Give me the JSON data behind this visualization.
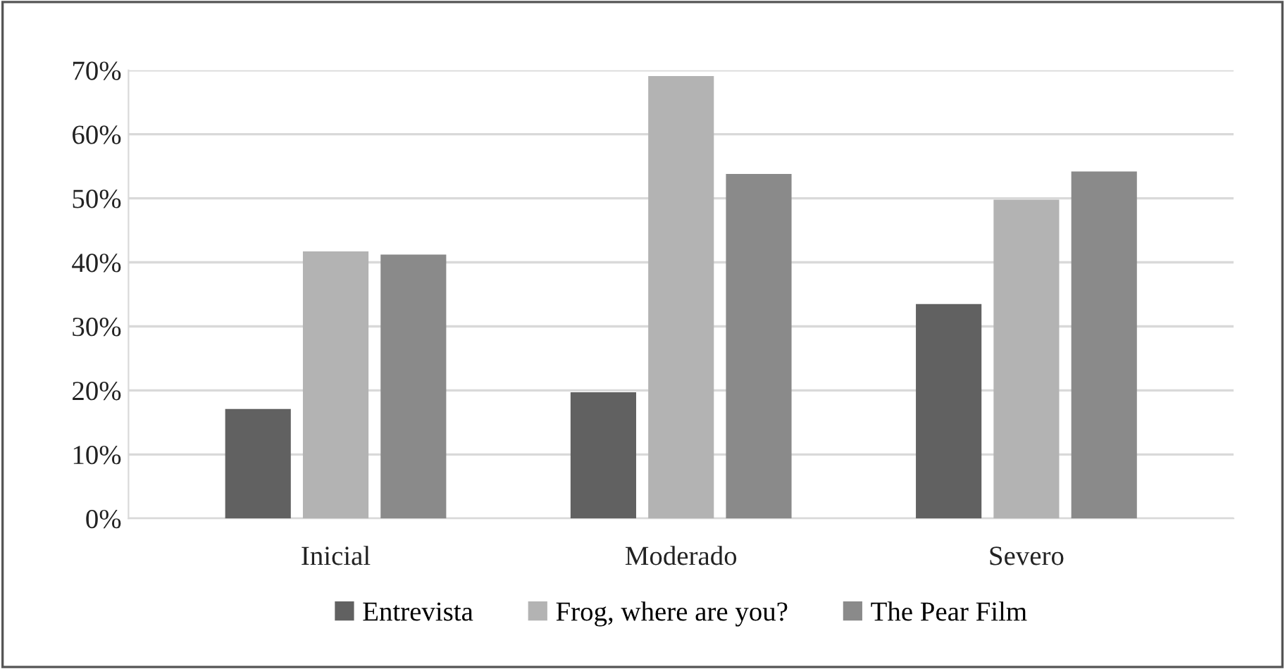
{
  "chart_data": {
    "type": "bar",
    "categories": [
      "Inicial",
      "Moderado",
      "Severo"
    ],
    "series": [
      {
        "name": "Entrevista",
        "color": "#616161",
        "values": [
          17.1,
          19.7,
          33.5
        ]
      },
      {
        "name": "Frog, where are you?",
        "color": "#b3b3b3",
        "values": [
          41.7,
          69.1,
          49.8
        ]
      },
      {
        "name": "The Pear Film",
        "color": "#8a8a8a",
        "values": [
          41.2,
          53.8,
          54.2
        ]
      }
    ],
    "ylim": [
      0,
      70
    ],
    "yticks": [
      {
        "value": 0,
        "label": "0%"
      },
      {
        "value": 10,
        "label": "10%"
      },
      {
        "value": 20,
        "label": "20%"
      },
      {
        "value": 30,
        "label": "30%"
      },
      {
        "value": 40,
        "label": "40%"
      },
      {
        "value": 50,
        "label": "50%"
      },
      {
        "value": 60,
        "label": "60%"
      },
      {
        "value": 70,
        "label": "70%"
      }
    ],
    "grid": "y",
    "legend": "bottom"
  }
}
